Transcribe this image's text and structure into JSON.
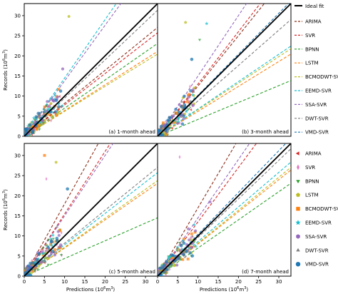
{
  "chart_data": {
    "type": "scatter",
    "xlabel_prefix": "Predictions (10",
    "xlabel_sup": "6",
    "xlabel_suffix": "m",
    "xlabel_sup2": "3",
    "xlabel_close": ")",
    "ylabel_prefix": "Records (10",
    "ylabel_sup": "6",
    "ylabel_suffix": "m",
    "ylabel_sup2": "3",
    "ylabel_close": ")",
    "xlim": [
      0,
      33
    ],
    "ylim": [
      0,
      33
    ],
    "xticks": [
      "0",
      "5",
      "10",
      "15",
      "20",
      "25",
      "30"
    ],
    "yticks": [
      "0",
      "5",
      "10",
      "15",
      "20",
      "25",
      "30"
    ],
    "xtick_values": [
      0,
      5,
      10,
      15,
      20,
      25,
      30
    ],
    "ytick_values": [
      0,
      5,
      10,
      15,
      20,
      25,
      30
    ],
    "ideal_fit_label": "Ideal fit",
    "models": [
      {
        "name": "ARIMA",
        "color": "#d62728",
        "marker": "triangle-left"
      },
      {
        "name": "SVR",
        "color": "#e377c2",
        "marker": "thin-diamond"
      },
      {
        "name": "BPNN",
        "color": "#2ca02c",
        "marker": "triangle-down"
      },
      {
        "name": "LSTM",
        "color": "#bcbd22",
        "marker": "pentagon"
      },
      {
        "name": "BCMODWT-SVR",
        "color": "#ff7f0e",
        "marker": "square"
      },
      {
        "name": "EEMD-SVR",
        "color": "#17becf",
        "marker": "star"
      },
      {
        "name": "SSA-SVR",
        "color": "#9467bd",
        "marker": "hexagon"
      },
      {
        "name": "DWT-SVR",
        "color": "#7f7f7f",
        "marker": "triangle-up"
      },
      {
        "name": "VMD-SVR",
        "color": "#1f77b4",
        "marker": "circle"
      }
    ],
    "fit_line_colors": [
      "#8c2d19",
      "#d62728",
      "#2ca02c",
      "#ff7f0e",
      "#bcbd22",
      "#17becf",
      "#9467bd",
      "#7f7f7f",
      "#1f77b4"
    ],
    "panels": [
      {
        "label": "(a) 1-month ahead",
        "fit_slopes": [
          0.82,
          0.78,
          0.7,
          0.64,
          0.62,
          1.45,
          1.38,
          0.95,
          1.0
        ]
      },
      {
        "label": "(b) 3-month ahead",
        "fit_slopes": [
          1.25,
          1.3,
          0.42,
          0.62,
          0.66,
          0.68,
          1.5,
          0.88,
          1.02
        ]
      },
      {
        "label": "(c) 5-month ahead",
        "fit_slopes": [
          1.8,
          1.55,
          0.44,
          0.7,
          0.72,
          0.78,
          1.5,
          0.82,
          1.0
        ]
      },
      {
        "label": "(d) 7-month ahead",
        "fit_slopes": [
          1.7,
          1.35,
          0.7,
          0.8,
          0.82,
          0.86,
          1.45,
          0.96,
          1.04
        ]
      }
    ]
  }
}
